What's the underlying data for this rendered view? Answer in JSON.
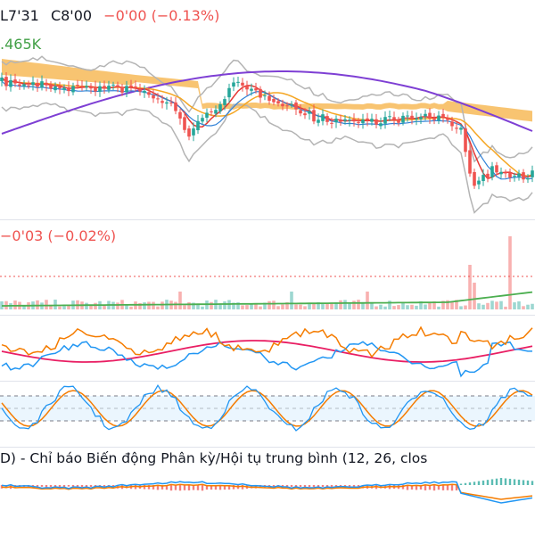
{
  "legend": {
    "ohlc_low": "L7'31",
    "ohlc_close": "C8'00",
    "ohlc_change": "−0'00 (−0.13%)",
    "price_extra": ".465K",
    "volume_change": "−0'03 (−0.02%)",
    "macd_title": "D) - Chỉ báo Biến động Phân kỳ/Hội tụ trung bình (12, 26, clos"
  },
  "colors": {
    "up": "#26a69a",
    "down": "#ef5350",
    "legend_down": "#ef5350",
    "legend_green": "#43a047",
    "cloud": "#f5b041",
    "ma_purple": "#7e3fd4",
    "ma_orange": "#f5a623",
    "ma_red": "#e53935",
    "ma_blue": "#2f80d6",
    "bollinger": "#b4b4b4",
    "rsi_orange": "#f57c00",
    "rsi_blue": "#2196f3",
    "rsi_pink": "#e91e63",
    "volume_ma": "#4caf50",
    "stoch_fill": "#e3f2fd"
  },
  "chart_data": [
    {
      "type": "candlestick",
      "panel": "price",
      "series": [
        {
          "name": "Ichimoku cloud"
        },
        {
          "name": "Bollinger Bands"
        },
        {
          "name": "MA long"
        },
        {
          "name": "MA fast"
        }
      ]
    },
    {
      "type": "bar",
      "panel": "volume",
      "note_line": "dotted red reference line"
    },
    {
      "type": "line",
      "panel": "oscillator",
      "series": [
        {
          "name": ""
        },
        {
          "name": ""
        },
        {
          "name": ""
        }
      ]
    },
    {
      "type": "line",
      "panel": "stochastic",
      "series": [
        {
          "name": ""
        },
        {
          "name": ""
        }
      ]
    },
    {
      "type": "bar",
      "panel": "macd",
      "params": [
        12,
        26
      ]
    }
  ]
}
